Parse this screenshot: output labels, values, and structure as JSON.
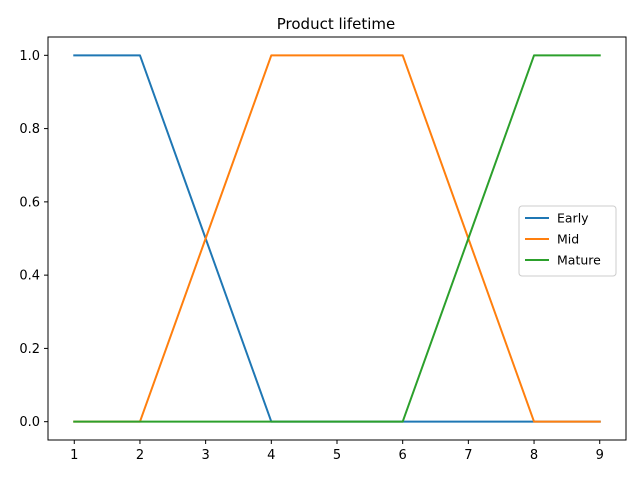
{
  "chart_data": {
    "type": "line",
    "title": "Product lifetime",
    "xlabel": "",
    "ylabel": "",
    "x": [
      1,
      2,
      3,
      4,
      5,
      6,
      7,
      8,
      9
    ],
    "xticks": [
      "1",
      "2",
      "3",
      "4",
      "5",
      "6",
      "7",
      "8",
      "9"
    ],
    "yticks": [
      "0.0",
      "0.2",
      "0.4",
      "0.6",
      "0.8",
      "1.0"
    ],
    "xlim": [
      0.6,
      9.4
    ],
    "ylim": [
      -0.05,
      1.05
    ],
    "grid": false,
    "legend_position": "center-right",
    "series": [
      {
        "name": "Early",
        "color": "#1f77b4",
        "values": [
          1,
          1,
          0.5,
          0,
          0,
          0,
          0,
          0,
          0
        ]
      },
      {
        "name": "Mid",
        "color": "#ff7f0e",
        "values": [
          0,
          0,
          0.5,
          1,
          1,
          1,
          0.5,
          0,
          0
        ]
      },
      {
        "name": "Mature",
        "color": "#2ca02c",
        "values": [
          0,
          0,
          0,
          0,
          0,
          0,
          0.5,
          1,
          1
        ]
      }
    ]
  }
}
